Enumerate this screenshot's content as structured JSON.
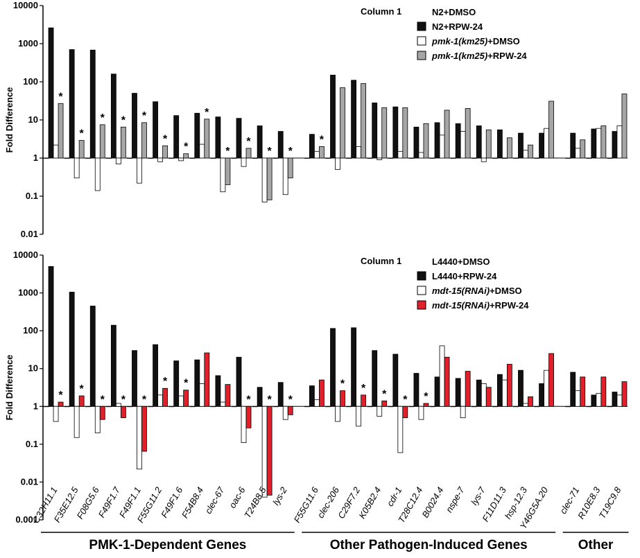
{
  "chart_data": [
    {
      "type": "bar",
      "log_y": true,
      "ylabel": "Fold Difference",
      "legend_title": "Column 1",
      "ylim": [
        0.01,
        10000
      ],
      "yticks": [
        0.01,
        0.1,
        1,
        10,
        100,
        1000,
        10000
      ],
      "series": [
        {
          "name": "N2+DMSO",
          "color": "#ffffff",
          "values": [
            1,
            1,
            1,
            1,
            1,
            1,
            1,
            1,
            1,
            1,
            1,
            1,
            1,
            1,
            1,
            1,
            1,
            1,
            1,
            1,
            1,
            1,
            1,
            1,
            1,
            1,
            1
          ]
        },
        {
          "name": "N2+RPW-24",
          "color": "#111111",
          "values": [
            2600,
            700,
            680,
            160,
            50,
            30,
            13,
            15,
            12,
            11,
            7,
            5,
            4.2,
            150,
            110,
            28,
            22,
            6.5,
            8.5,
            8,
            7,
            5.5,
            4.5,
            4.5,
            4.5,
            5.8,
            5
          ]
        },
        {
          "name": "pmk-1(km25)+DMSO",
          "color": "#ffffff",
          "values": [
            2.2,
            0.3,
            0.14,
            0.7,
            0.22,
            0.8,
            0.85,
            2.3,
            0.13,
            0.6,
            0.07,
            0.11,
            1.5,
            0.5,
            2,
            0.9,
            1.5,
            1.4,
            4,
            5,
            0.8,
            1,
            1.6,
            6,
            1.8,
            6,
            7
          ]
        },
        {
          "name": "pmk-1(km25)+RPW-24",
          "color": "#a6a6a6",
          "values": [
            27,
            2.9,
            7.5,
            6.5,
            8.5,
            2.1,
            1.3,
            10.5,
            0.2,
            1.8,
            0.08,
            0.3,
            2,
            70,
            90,
            21,
            21,
            8,
            18,
            20,
            5.5,
            3.4,
            2.2,
            31,
            3,
            7,
            48
          ],
          "annotations": [
            "*",
            "*",
            "*",
            "*",
            "*",
            "*",
            "*",
            "*",
            "*",
            "*",
            "*",
            "*",
            "*",
            null,
            null,
            null,
            null,
            null,
            null,
            null,
            null,
            null,
            null,
            null,
            null,
            null,
            null
          ]
        }
      ]
    },
    {
      "type": "bar",
      "log_y": true,
      "ylabel": "Fold Difference",
      "legend_title": "Column 1",
      "ylim": [
        0.001,
        10000
      ],
      "yticks": [
        0.001,
        0.01,
        0.1,
        1,
        10,
        100,
        1000,
        10000
      ],
      "categories": [
        "C32H11.1",
        "F35E12.5",
        "F08G5.6",
        "F49F1.7",
        "F49F1.1",
        "F55G11.2",
        "F49F1.6",
        "F54B8.4",
        "clec-67",
        "oac-6",
        "T24B8.5",
        "lys-2",
        "F55G11.6",
        "clec-206",
        "C29F7.2",
        "K05B2.4",
        "cdr-1",
        "T28C12.4",
        "B0024.4",
        "nspe-7",
        "lys-7",
        "F11D11.3",
        "hsp-12.3",
        "Y46G5A.20",
        "clec-71",
        "R10E8.3",
        "T19C9.8"
      ],
      "sections": [
        {
          "label": "PMK-1-Dependent Genes",
          "count": 12
        },
        {
          "label": "Other Pathogen-Induced Genes",
          "count": 12
        },
        {
          "label": "Other",
          "count": 3
        }
      ],
      "series": [
        {
          "name": "L4440+DMSO",
          "color": "#ffffff",
          "values": [
            1,
            1,
            1,
            1,
            1,
            1,
            1,
            1,
            1,
            1,
            1,
            1,
            1,
            1,
            1,
            1,
            1,
            1,
            1,
            1,
            1,
            1,
            1,
            1,
            1,
            1,
            1
          ]
        },
        {
          "name": "L4440+RPW-24",
          "color": "#111111",
          "values": [
            5000,
            1050,
            450,
            140,
            30,
            43,
            16,
            17,
            6.5,
            20,
            3.2,
            4.3,
            3.5,
            115,
            120,
            30,
            24,
            7.5,
            6,
            5.5,
            5,
            7,
            9,
            4,
            8,
            2,
            2.4
          ]
        },
        {
          "name": "mdt-15(RNAi)+DMSO",
          "color": "#ffffff",
          "values": [
            0.4,
            0.15,
            0.2,
            1.2,
            0.022,
            2,
            1.9,
            4,
            1.3,
            0.11,
            0.004,
            0.45,
            1.5,
            0.4,
            0.3,
            0.55,
            0.06,
            0.45,
            40,
            0.5,
            4,
            5,
            1.2,
            9,
            2.6,
            2.2,
            2
          ]
        },
        {
          "name": "mdt-15(RNAi)+RPW-24",
          "color": "#e0202a",
          "values": [
            1.3,
            1.9,
            0.45,
            0.5,
            0.065,
            3,
            2.7,
            26,
            3.8,
            0.27,
            0.0045,
            0.6,
            5,
            2.6,
            2,
            1.4,
            0.5,
            1.2,
            20,
            8.5,
            3.2,
            13,
            1.8,
            25,
            6,
            6,
            4.5
          ],
          "annotations": [
            "*",
            "*",
            "*",
            "*",
            "*",
            "*",
            "*",
            null,
            null,
            "*",
            "*",
            "*",
            null,
            "*",
            "*",
            "*",
            "*",
            "*",
            null,
            null,
            null,
            null,
            null,
            null,
            null,
            null,
            null
          ]
        }
      ]
    }
  ]
}
